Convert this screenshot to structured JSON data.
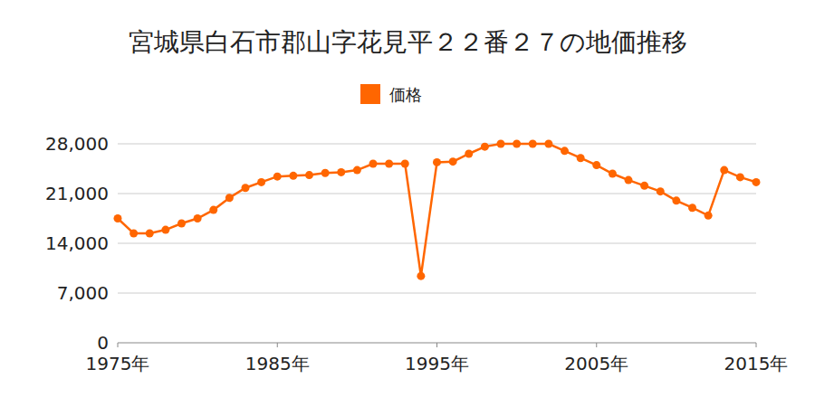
{
  "chart_data": {
    "type": "line",
    "title": "宮城県白石市郡山字花見平２２番２７の地価推移",
    "x": [
      1975,
      1976,
      1977,
      1978,
      1979,
      1980,
      1981,
      1982,
      1983,
      1984,
      1985,
      1986,
      1987,
      1988,
      1989,
      1990,
      1991,
      1992,
      1993,
      1994,
      1995,
      1996,
      1997,
      1998,
      1999,
      2000,
      2001,
      2002,
      2003,
      2004,
      2005,
      2006,
      2007,
      2008,
      2009,
      2010,
      2011,
      2012,
      2013,
      2014,
      2015
    ],
    "series": [
      {
        "name": "価格",
        "color": "#ff6600",
        "marker": "circle",
        "values": [
          17500,
          15400,
          15400,
          15900,
          16800,
          17500,
          18700,
          20400,
          21800,
          22600,
          23400,
          23500,
          23600,
          23900,
          24000,
          24300,
          25200,
          25200,
          25200,
          9400,
          25400,
          25500,
          26600,
          27600,
          28000,
          28000,
          28000,
          28000,
          27000,
          26000,
          25000,
          23800,
          22900,
          22100,
          21300,
          20000,
          19000,
          17900,
          24300,
          23300,
          22600
        ]
      }
    ],
    "xlim": [
      1975,
      2015
    ],
    "xticks": [
      {
        "value": 1975,
        "label": "1975年"
      },
      {
        "value": 1985,
        "label": "1985年"
      },
      {
        "value": 1995,
        "label": "1995年"
      },
      {
        "value": 2005,
        "label": "2005年"
      },
      {
        "value": 2015,
        "label": "2015年"
      }
    ],
    "ylim": [
      0,
      28000
    ],
    "yticks": [
      0,
      {
        "value": 7000,
        "label": "7,000"
      },
      {
        "value": 14000,
        "label": "14,000"
      },
      {
        "value": 21000,
        "label": "21,000"
      },
      {
        "value": 28000,
        "label": "28,000"
      }
    ],
    "grid": true,
    "legend": "top"
  }
}
